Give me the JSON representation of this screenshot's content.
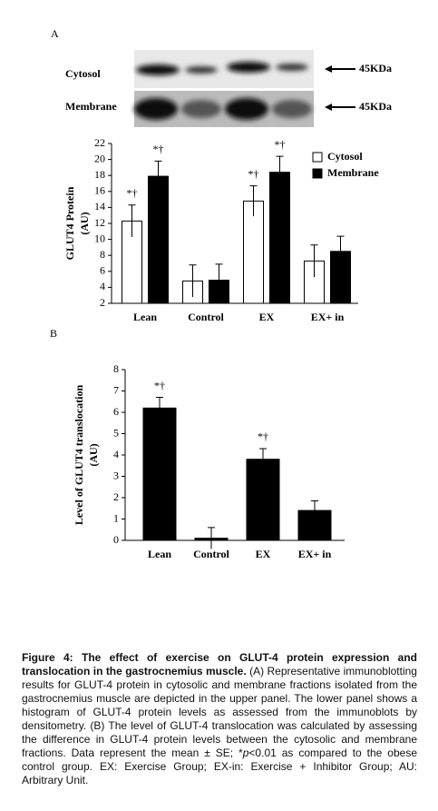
{
  "figure": {
    "panels": [
      "A",
      "B"
    ],
    "blot": {
      "rows": [
        "Cytosol",
        "Membrane"
      ],
      "size_labels": [
        "45KDa",
        "45KDa"
      ]
    },
    "caption": {
      "title": "Figure 4: The effect of exercise on GLUT-4 protein expression and translocation in the gastrocnemius muscle.",
      "text_before": "(A) Representative immunoblotting results for GLUT-4 protein in cytosolic and membrane fractions isolated from the gastrocnemius muscle are depicted in the upper panel. The lower panel shows a histogram of GLUT-4 protein levels as assessed from the immunoblots by densitometry. (B) The level of GLUT-4 translocation was calculated by assessing the difference in GLUT-4 protein levels between the cytosolic and membrane fractions. Data represent the mean ± SE; *",
      "italic": "p",
      "text_after": "<0.01 as compared to the obese control group. EX: Exercise Group; EX-in: Exercise + Inhibitor Group; AU: Arbitrary Unit."
    }
  },
  "chart_data": [
    {
      "type": "bar",
      "categories": [
        "Lean",
        "Control",
        "EX",
        "EX+ in"
      ],
      "series": [
        {
          "name": "Cytosol",
          "color": "#ffffff",
          "values": [
            12.3,
            4.8,
            14.8,
            7.3
          ],
          "errors": [
            2.0,
            2.0,
            1.9,
            2.0
          ],
          "annotations": [
            "*†",
            null,
            "*†",
            null
          ]
        },
        {
          "name": "Membrane",
          "color": "#000000",
          "values": [
            17.9,
            4.9,
            18.4,
            8.5
          ],
          "errors": [
            1.9,
            2.0,
            2.0,
            1.9
          ],
          "annotations": [
            "*†",
            null,
            "*†",
            null
          ]
        }
      ],
      "ylim": [
        2,
        22
      ],
      "yticks": [
        2,
        4,
        6,
        8,
        10,
        12,
        14,
        16,
        18,
        20,
        22
      ],
      "y_label": [
        "GLUT4 Protein",
        "(AU)"
      ],
      "legend": "upper right"
    },
    {
      "type": "bar",
      "categories": [
        "Lean",
        "Control",
        "EX",
        "EX+ in"
      ],
      "series": [
        {
          "color": "#000000",
          "values": [
            6.2,
            0.1,
            3.8,
            1.4
          ],
          "errors": [
            0.5,
            0.5,
            0.5,
            0.45
          ],
          "annotations": [
            "*†",
            null,
            "*†",
            null
          ]
        }
      ],
      "ylim": [
        0,
        8
      ],
      "yticks": [
        0,
        1,
        2,
        3,
        4,
        5,
        6,
        7,
        8
      ],
      "y_label": [
        "Level of GLUT4 translocation",
        "(AU)"
      ]
    }
  ]
}
